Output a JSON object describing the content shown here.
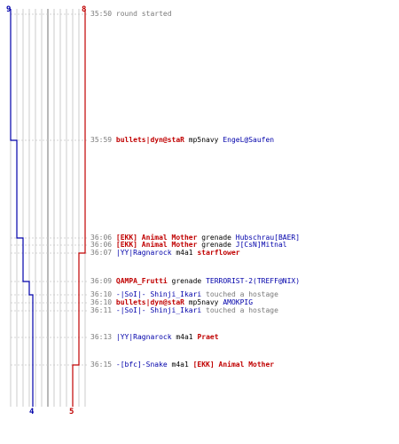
{
  "colors": {
    "red": "#c00000",
    "blue": "#0000aa",
    "grid": "#bfbfbf",
    "text": "#7a7a7a"
  },
  "counts": {
    "blue_start": "9",
    "red_start": "8",
    "blue_end": "4",
    "red_end": "5"
  },
  "log": [
    {
      "time": "35:50",
      "parts": [
        {
          "t": "round started",
          "c": "txt"
        }
      ]
    },
    {
      "time": "35:59",
      "parts": [
        {
          "t": "bullets|dyn@staR",
          "c": "red"
        },
        {
          "t": " mp5navy ",
          "c": "weapon"
        },
        {
          "t": "EngeL@Saufen",
          "c": "blue"
        }
      ]
    },
    {
      "time": "36:06",
      "parts": [
        {
          "t": "[EKK] Animal Mother",
          "c": "red"
        },
        {
          "t": " grenade ",
          "c": "weapon"
        },
        {
          "t": "Hubschrau[BAER]",
          "c": "blue"
        }
      ]
    },
    {
      "time": "36:06",
      "parts": [
        {
          "t": "[EKK] Animal Mother",
          "c": "red"
        },
        {
          "t": " grenade ",
          "c": "weapon"
        },
        {
          "t": "J[CsN]Mitnal",
          "c": "blue"
        }
      ]
    },
    {
      "time": "36:07",
      "parts": [
        {
          "t": "|YY|Ragnarock",
          "c": "blue"
        },
        {
          "t": " m4a1 ",
          "c": "weapon"
        },
        {
          "t": "starflower",
          "c": "red"
        }
      ]
    },
    {
      "time": "36:09",
      "parts": [
        {
          "t": "QAMPA_Frutti",
          "c": "red"
        },
        {
          "t": " grenade ",
          "c": "weapon"
        },
        {
          "t": "TERRORIST-2(TREFF@NIX)",
          "c": "blue"
        }
      ]
    },
    {
      "time": "36:10",
      "parts": [
        {
          "t": "-|SoI|- Shinji_Ikari",
          "c": "blue"
        },
        {
          "t": " touched a hostage",
          "c": "txt"
        }
      ]
    },
    {
      "time": "36:10",
      "parts": [
        {
          "t": "bullets|dyn@staR",
          "c": "red"
        },
        {
          "t": " mp5navy ",
          "c": "weapon"
        },
        {
          "t": "AMOKPIG",
          "c": "blue"
        }
      ]
    },
    {
      "time": "36:11",
      "parts": [
        {
          "t": "-|SoI|- Shinji_Ikari",
          "c": "blue"
        },
        {
          "t": " touched a hostage",
          "c": "txt"
        }
      ]
    },
    {
      "time": "36:13",
      "parts": [
        {
          "t": "|YY|Ragnarock",
          "c": "blue"
        },
        {
          "t": " m4a1 ",
          "c": "weapon"
        },
        {
          "t": "Praet",
          "c": "red"
        }
      ]
    },
    {
      "time": "36:15",
      "parts": [
        {
          "t": "-[bfc]-Snake",
          "c": "blue"
        },
        {
          "t": " m4a1 ",
          "c": "weapon"
        },
        {
          "t": "[EKK] Animal Mother",
          "c": "red"
        }
      ]
    }
  ]
}
